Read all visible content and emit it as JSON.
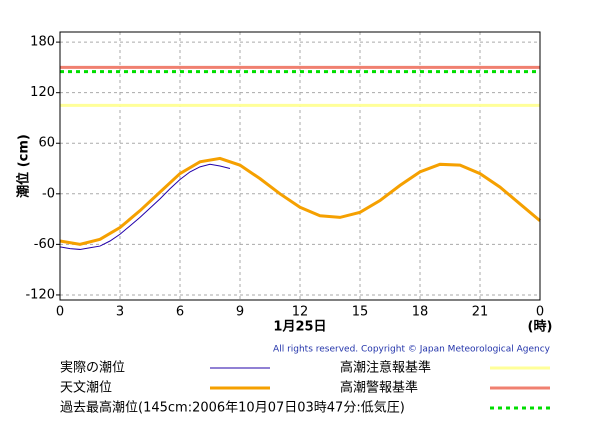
{
  "chart_data": {
    "type": "line",
    "y_label": "潮位 (cm)",
    "x_label": "1月25日",
    "x_unit": "(時)",
    "copyright": "All rights reserved. Copyright © Japan Meteorological Agency",
    "xlim": [
      0,
      24
    ],
    "xticks": [
      0,
      3,
      6,
      9,
      12,
      15,
      18,
      21,
      {
        "value": 24,
        "label": "0"
      }
    ],
    "ylim": [
      -126,
      192
    ],
    "yticks": [
      -120,
      -60,
      {
        "value": 0,
        "label": "-0"
      },
      60,
      120,
      180
    ],
    "grid": true,
    "series": [
      {
        "name": "実際の潮位",
        "color": "#2200aa",
        "width": 1,
        "x": [
          0,
          0.5,
          1,
          1.5,
          2,
          2.5,
          3,
          3.5,
          4,
          4.5,
          5,
          5.5,
          6,
          6.5,
          7,
          7.5,
          8,
          8.5
        ],
        "values": [
          -63,
          -65,
          -66,
          -64,
          -62,
          -56,
          -48,
          -38,
          -28,
          -17,
          -6,
          6,
          17,
          26,
          32,
          35,
          33,
          30
        ]
      },
      {
        "name": "天文潮位",
        "color": "#f5a000",
        "width": 3,
        "x": [
          0,
          1,
          2,
          3,
          4,
          5,
          6,
          7,
          8,
          9,
          10,
          11,
          12,
          13,
          14,
          15,
          16,
          17,
          18,
          19,
          20,
          21,
          22,
          23,
          24
        ],
        "values": [
          -56,
          -60,
          -54,
          -40,
          -20,
          2,
          24,
          38,
          42,
          34,
          18,
          0,
          -16,
          -26,
          -28,
          -22,
          -8,
          10,
          26,
          35,
          34,
          24,
          8,
          -12,
          -32
        ]
      },
      {
        "name": "高潮注意報基準",
        "color": "#ffff99",
        "width": 3,
        "x": [
          0,
          24
        ],
        "values": [
          105,
          105
        ]
      },
      {
        "name": "高潮警報基準",
        "color": "#f08070",
        "width": 3,
        "x": [
          0,
          24
        ],
        "values": [
          150,
          150
        ]
      },
      {
        "name": "過去最高潮位(145cm:2006年10月07日03時47分:低気圧)",
        "color": "#00dd00",
        "width": 3,
        "dash": true,
        "x": [
          0,
          24
        ],
        "values": [
          145,
          145
        ]
      }
    ]
  }
}
